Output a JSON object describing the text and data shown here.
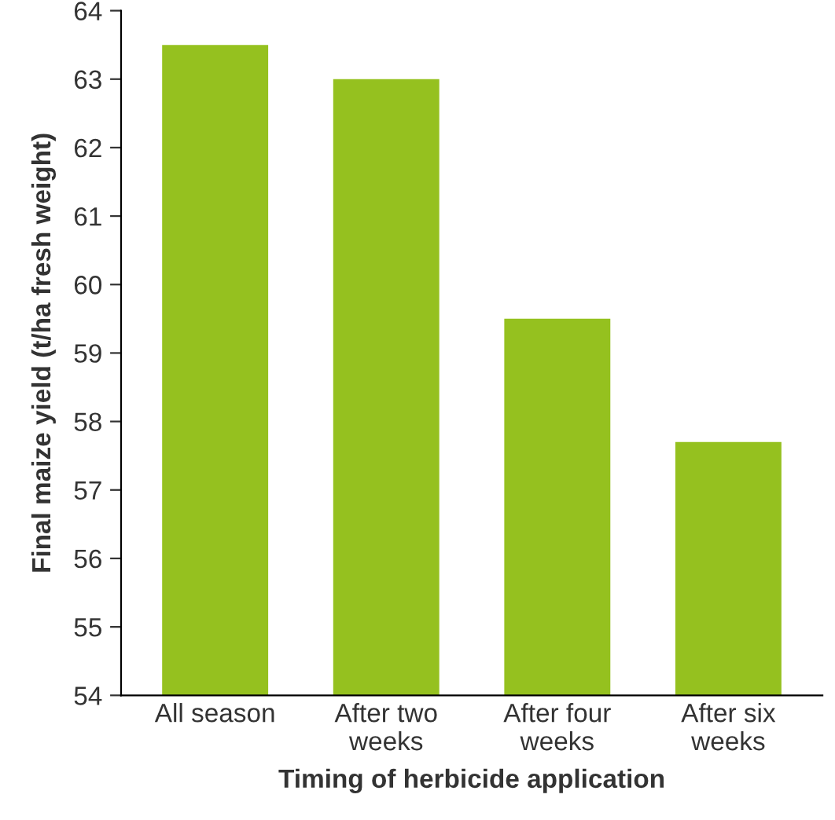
{
  "chart_data": {
    "type": "bar",
    "xlabel": "Timing of herbicide application",
    "ylabel": "Final maize yield (t/ha fresh weight)",
    "categories": [
      "All season",
      "After two\nweeks",
      "After four\nweeks",
      "After six\nweeks"
    ],
    "values": [
      63.5,
      63.0,
      59.5,
      57.7
    ],
    "color": "#95c11f",
    "ylim": [
      54,
      64
    ],
    "yticks": [
      54,
      55,
      56,
      57,
      58,
      59,
      60,
      61,
      62,
      63,
      64
    ],
    "grid": false,
    "legend": false
  }
}
